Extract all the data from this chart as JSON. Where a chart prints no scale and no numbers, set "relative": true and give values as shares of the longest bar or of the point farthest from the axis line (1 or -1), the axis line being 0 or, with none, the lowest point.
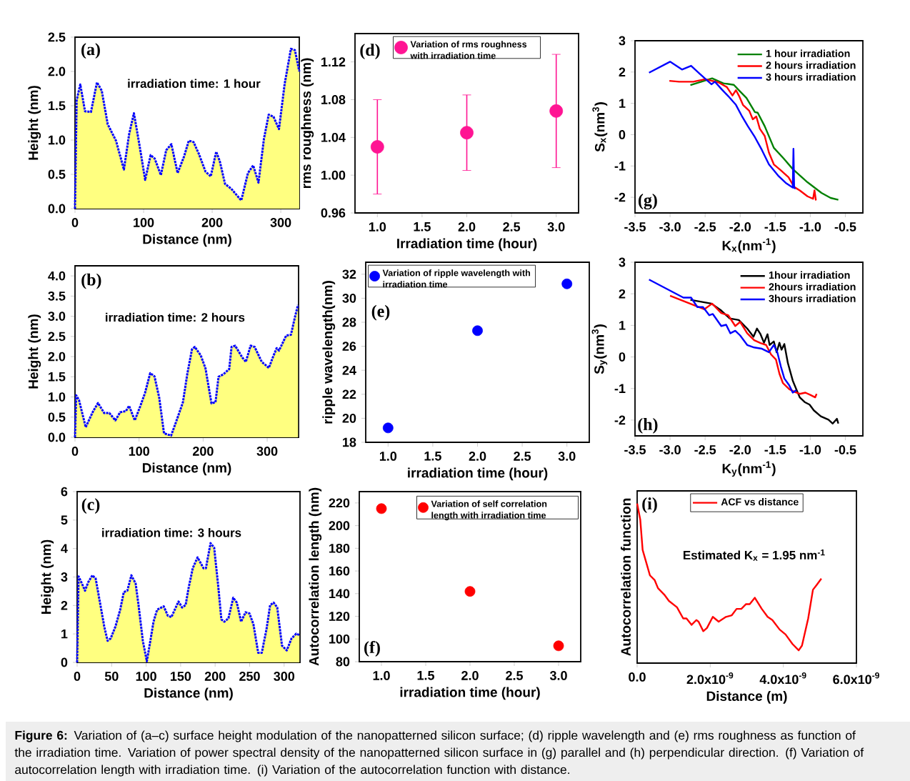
{
  "chart_data": [
    {
      "type": "area",
      "xlabel": "Distance (nm)",
      "ylabel": "Height (nm)",
      "annotations": [
        "(a)",
        "irradiation time: 1 hour"
      ],
      "line_style": "dotted",
      "x": [
        0,
        2.4,
        7.7,
        14.6,
        23.3,
        32.0,
        39.0,
        47.7,
        59.8,
        71.3,
        79.0,
        85.9,
        93.6,
        102.3,
        110.3,
        116.2,
        125.2,
        132.9,
        140.5,
        149.6,
        159.0,
        165.9,
        172.9,
        180.5,
        190.3,
        197.9,
        205.9,
        211.1,
        218.8,
        227.8,
        242.4,
        252.2,
        259.8,
        267.5,
        275.5,
        282.4,
        289.4,
        297.4,
        305.7,
        314.8,
        320.7,
        327
      ],
      "series": [
        {
          "type": "area",
          "color": "#ffff80",
          "values": [
            0,
            1.58,
            1.81,
            1.42,
            1.41,
            1.84,
            1.72,
            1.23,
            0.99,
            0.57,
            1.09,
            1.39,
            0.95,
            0.42,
            0.78,
            0.73,
            0.49,
            0.85,
            0.94,
            0.52,
            0.76,
            0.99,
            0.97,
            0.8,
            0.54,
            0.47,
            0.83,
            0.69,
            0.36,
            0.29,
            0.12,
            0.52,
            0.63,
            0.38,
            1.02,
            1.37,
            1.34,
            1.16,
            1.82,
            2.33,
            2.31,
            2.0
          ]
        }
      ],
      "color": "#0000ff",
      "xlim": [
        0,
        327
      ],
      "xticks": [
        0,
        100,
        200,
        300
      ],
      "ylim": [
        0,
        2.5
      ],
      "yticks": [
        {
          "value": 0,
          "label": "0.0"
        },
        0.5,
        {
          "value": 1,
          "label": "1.0"
        },
        1.5,
        {
          "value": 2,
          "label": "2.0"
        },
        2.5
      ]
    },
    {
      "type": "scatter",
      "xlabel": "Irradiation time (hour)",
      "ylabel": "rms roughness (nm)",
      "annotations": [
        "(d)"
      ],
      "legend": "top",
      "x": [
        1,
        2,
        3
      ],
      "series": [
        {
          "name": "Variation of rms roughness with irradiation time",
          "color": "#ff1493",
          "values": [
            1.03,
            1.045,
            1.068
          ],
          "errors": [
            0.05,
            0.04,
            0.06
          ]
        }
      ],
      "xlim": [
        0.75,
        3.25
      ],
      "xticks": [
        {
          "value": 1,
          "label": "1.0"
        },
        1.5,
        {
          "value": 2,
          "label": "2.0"
        },
        2.5,
        {
          "value": 3,
          "label": "3.0"
        }
      ],
      "ylim": [
        0.96,
        1.15
      ],
      "yticks": [
        0.96,
        {
          "value": 1,
          "label": "1.00"
        },
        1.04,
        1.08,
        1.12
      ]
    },
    {
      "type": "line",
      "xlabel": "K$_{x}$(nm$^{-1}$)",
      "ylabel": "S$_{x}$(nm$^{3}$)",
      "annotations": [
        "(g)"
      ],
      "legend": "top right",
      "series": [
        {
          "name": "1 hour irradiation",
          "color": "#008000",
          "x": [
            -2.71,
            -2.4,
            -2.24,
            -2.09,
            -2.01,
            -1.91,
            -1.79,
            -1.75,
            -1.65,
            -1.52,
            -1.38,
            -1.25,
            -1.04,
            -0.84,
            -0.71,
            -0.6
          ],
          "values": [
            1.58,
            1.8,
            1.64,
            1.59,
            1.4,
            1.17,
            0.72,
            0.7,
            0.27,
            -0.42,
            -0.76,
            -1.1,
            -1.52,
            -1.86,
            -2.02,
            -2.08
          ]
        },
        {
          "name": "2 hours irradiation",
          "color": "#ff0000",
          "x": [
            -3.01,
            -2.87,
            -2.67,
            -2.5,
            -2.31,
            -2.19,
            -2.11,
            -2.06,
            -2.01,
            -1.96,
            -1.87,
            -1.82,
            -1.77,
            -1.72,
            -1.65,
            -1.59,
            -1.52,
            -1.42,
            -1.31,
            -1.23,
            -1.15,
            -1.04,
            -0.96,
            -0.94,
            -0.92
          ],
          "values": [
            1.72,
            1.69,
            1.69,
            1.77,
            1.67,
            1.52,
            1.25,
            1.42,
            1.21,
            0.95,
            0.76,
            0.49,
            0.58,
            0.19,
            -0.04,
            -0.57,
            -0.95,
            -1.14,
            -1.36,
            -1.67,
            -1.78,
            -1.97,
            -2.05,
            -1.78,
            -2.1
          ]
        },
        {
          "name": "3 hours irradiation",
          "color": "#0000ff",
          "x": [
            -3.3,
            -3.0,
            -2.83,
            -2.7,
            -2.57,
            -2.41,
            -2.36,
            -2.26,
            -2.17,
            -2.06,
            -1.97,
            -1.89,
            -1.79,
            -1.69,
            -1.59,
            -1.45,
            -1.35,
            -1.25,
            -1.24,
            -1.23,
            -1.21
          ],
          "values": [
            1.98,
            2.33,
            2.08,
            2.2,
            1.93,
            1.61,
            1.69,
            1.44,
            1.23,
            0.95,
            0.57,
            0.27,
            -0.08,
            -0.49,
            -0.95,
            -1.33,
            -1.54,
            -1.69,
            -0.45,
            -1.7,
            -1.72
          ]
        }
      ],
      "xlim": [
        -3.5,
        -0.25
      ],
      "xticks": [
        -3.5,
        {
          "value": -3,
          "label": "-3.0"
        },
        -2.5,
        {
          "value": -2,
          "label": "-2.0"
        },
        -1.5,
        {
          "value": -1,
          "label": "-1.0"
        },
        -0.5
      ],
      "ylim": [
        -2.5,
        3
      ],
      "yticks": [
        -2,
        -1,
        0,
        1,
        2,
        3
      ]
    },
    {
      "type": "area",
      "xlabel": "Distance (nm)",
      "ylabel": "Height (nm)",
      "annotations": [
        "(b)",
        "irradiation time: 2 hours"
      ],
      "line_style": "dotted",
      "x": [
        0,
        1.9,
        6.3,
        16.7,
        27.8,
        35.9,
        45.6,
        53.7,
        63.0,
        70.4,
        79.6,
        84.4,
        93.3,
        101.9,
        109.3,
        117.4,
        124.1,
        131.5,
        138.9,
        150.0,
        159.3,
        168.5,
        175.2,
        182.6,
        187.0,
        196.3,
        203.7,
        213.0,
        219.3,
        224.1,
        231.5,
        240.7,
        244.4,
        250.0,
        261.1,
        266.7,
        274.1,
        280.4,
        291.5,
        302.6,
        309.3,
        314.8,
        318.5,
        329.6,
        337.0,
        344.4,
        348.1
      ],
      "series": [
        {
          "type": "area",
          "color": "#ffff80",
          "values": [
            0,
            1.04,
            0.92,
            0.25,
            0.63,
            0.85,
            0.6,
            0.6,
            0.42,
            0.62,
            0.65,
            0.78,
            0.42,
            0.77,
            1.1,
            1.59,
            1.51,
            0.98,
            0.1,
            0.04,
            0.45,
            0.87,
            1.56,
            2.18,
            2.24,
            2.03,
            1.71,
            0.84,
            0.87,
            1.5,
            1.56,
            1.69,
            2.24,
            2.27,
            1.98,
            1.87,
            2.27,
            2.24,
            1.87,
            1.72,
            2.0,
            2.21,
            2.15,
            2.52,
            2.54,
            3.05,
            3.28
          ]
        }
      ],
      "color": "#0000ff",
      "xlim": [
        0,
        349
      ],
      "xticks": [
        0,
        100,
        200,
        300
      ],
      "ylim": [
        0,
        4.25
      ],
      "yticks": [
        {
          "value": 0,
          "label": "0.0"
        },
        0.5,
        {
          "value": 1,
          "label": "1.0"
        },
        1.5,
        {
          "value": 2,
          "label": "2.0"
        },
        2.5,
        {
          "value": 3,
          "label": "3.0"
        },
        3.5,
        {
          "value": 4,
          "label": "4.0"
        }
      ]
    },
    {
      "type": "scatter",
      "xlabel": "irradiation time (hour)",
      "ylabel": "ripple wavelength(nm)",
      "annotations": [
        "(e)"
      ],
      "legend": "top left",
      "x": [
        1,
        2,
        3
      ],
      "series": [
        {
          "name": "Variation of ripple wavelength with irradiation time",
          "color": "#0000ff",
          "values": [
            19.2,
            27.3,
            31.2
          ]
        }
      ],
      "xlim": [
        0.75,
        3.25
      ],
      "xticks": [
        {
          "value": 1,
          "label": "1.0"
        },
        1.5,
        {
          "value": 2,
          "label": "2.0"
        },
        2.5,
        {
          "value": 3,
          "label": "3.0"
        }
      ],
      "ylim": [
        18,
        33
      ],
      "yticks": [
        18,
        20,
        22,
        24,
        26,
        28,
        30,
        32
      ]
    },
    {
      "type": "line",
      "xlabel": "K$_{y}$(nm$^{-1}$)",
      "ylabel": "S$_{y}$(nm$^{3}$)",
      "annotations": [
        "(h)"
      ],
      "legend": "top right",
      "series": [
        {
          "name": "1hour irradiation",
          "color": "#000000",
          "x": [
            -2.71,
            -2.51,
            -2.41,
            -2.27,
            -2.15,
            -2.02,
            -1.9,
            -1.81,
            -1.76,
            -1.71,
            -1.66,
            -1.61,
            -1.58,
            -1.52,
            -1.48,
            -1.44,
            -1.41,
            -1.37,
            -1.32,
            -1.25,
            -1.2,
            -1.15,
            -1.08,
            -1.01,
            -0.95,
            -0.85,
            -0.74,
            -0.68,
            -0.62,
            -0.6
          ],
          "values": [
            1.81,
            1.73,
            1.69,
            1.47,
            1.22,
            1.17,
            0.9,
            0.64,
            0.9,
            0.72,
            0.45,
            0.72,
            0.38,
            0.49,
            0.15,
            0.45,
            0.23,
            0.41,
            -0.19,
            -0.75,
            -1.02,
            -1.28,
            -1.43,
            -1.51,
            -1.69,
            -1.88,
            -1.99,
            -2.11,
            -1.96,
            -2.11
          ]
        },
        {
          "name": "2hours irradiation",
          "color": "#ff0000",
          "x": [
            -3.0,
            -2.51,
            -2.4,
            -2.27,
            -2.17,
            -2.07,
            -2.0,
            -1.9,
            -1.8,
            -1.71,
            -1.63,
            -1.56,
            -1.49,
            -1.44,
            -1.39,
            -1.3,
            -1.22,
            -1.15,
            -1.07,
            -1.0,
            -0.93,
            -0.91
          ],
          "values": [
            1.94,
            1.51,
            1.69,
            1.39,
            1.32,
            0.98,
            1.11,
            0.75,
            0.53,
            0.44,
            0.38,
            0.08,
            -0.08,
            -0.53,
            -0.83,
            -1.02,
            -1.11,
            -1.17,
            -1.13,
            -1.2,
            -1.28,
            -1.17
          ]
        },
        {
          "name": "3hours irradiation",
          "color": "#0000ff",
          "x": [
            -3.3,
            -2.81,
            -2.7,
            -2.61,
            -2.53,
            -2.44,
            -2.39,
            -2.27,
            -2.2,
            -2.14,
            -2.07,
            -2.0,
            -1.9,
            -1.8,
            -1.69,
            -1.59,
            -1.52,
            -1.47,
            -1.42,
            -1.37,
            -1.3,
            -1.25,
            -1.2
          ],
          "values": [
            2.45,
            1.88,
            1.88,
            1.58,
            1.58,
            1.32,
            1.36,
            0.98,
            1.02,
            0.75,
            0.83,
            0.68,
            0.38,
            0.3,
            0.26,
            0.15,
            0.38,
            0.15,
            -0.3,
            -0.68,
            -0.9,
            -1.13,
            -1.05
          ]
        }
      ],
      "xlim": [
        -3.5,
        -0.25
      ],
      "xticks": [
        -3.5,
        {
          "value": -3,
          "label": "-3.0"
        },
        -2.5,
        {
          "value": -2,
          "label": "-2.0"
        },
        -1.5,
        {
          "value": -1,
          "label": "-1.0"
        },
        -0.5
      ],
      "ylim": [
        -2.5,
        3
      ],
      "yticks": [
        -2,
        -1,
        0,
        1,
        2,
        3
      ]
    },
    {
      "type": "area",
      "xlabel": "Distance (nm)",
      "ylabel": "Height (nm)",
      "annotations": [
        "(c)",
        "irradiation time: 3 hours"
      ],
      "line_style": "dotted",
      "x": [
        0,
        2.1,
        6.2,
        11.4,
        15.9,
        22.1,
        26.9,
        33.1,
        39.3,
        44.1,
        48.6,
        55.5,
        62.4,
        67.6,
        72.8,
        78.6,
        84.8,
        89.0,
        95.2,
        101.0,
        105.5,
        110.7,
        115.9,
        125.5,
        131.4,
        136.6,
        146.9,
        152.1,
        157.2,
        161.4,
        167.6,
        174.5,
        183.1,
        186.6,
        193.4,
        198.6,
        204.5,
        209.0,
        213.4,
        219.3,
        226.2,
        231.4,
        237.6,
        244.1,
        249.7,
        255.5,
        262.4,
        267.6,
        274.5,
        279.7,
        284.8,
        290.0,
        296.9,
        303.8,
        310.7,
        317.6,
        322.1
      ],
      "series": [
        {
          "type": "area",
          "color": "#ffff80",
          "values": [
            0,
            3.02,
            2.81,
            2.52,
            2.81,
            3.06,
            2.94,
            2.1,
            1.26,
            0.76,
            0.84,
            1.26,
            1.85,
            2.47,
            2.52,
            3.06,
            2.77,
            2.01,
            0.76,
            0.04,
            0.67,
            1.43,
            1.85,
            1.97,
            1.64,
            1.59,
            2.14,
            1.93,
            2.01,
            2.6,
            3.31,
            3.69,
            3.31,
            3.31,
            4.19,
            4.03,
            2.68,
            1.51,
            1.43,
            1.55,
            2.27,
            2.1,
            1.43,
            1.76,
            1.72,
            1.34,
            0.34,
            0.34,
            1.17,
            2.01,
            2.1,
            1.93,
            0.59,
            0.42,
            0.84,
            1.01,
            0.96
          ]
        }
      ],
      "color": "#0000ff",
      "xlim": [
        0,
        323
      ],
      "xticks": [
        0,
        50,
        100,
        150,
        200,
        250,
        300
      ],
      "ylim": [
        0,
        6
      ],
      "yticks": [
        0,
        1,
        2,
        3,
        4,
        5,
        6
      ]
    },
    {
      "type": "scatter",
      "xlabel": "irradiation time (hour)",
      "ylabel": "Autocorrelation length (nm)",
      "annotations": [
        "(f)"
      ],
      "legend": "top right",
      "x": [
        1,
        2,
        3
      ],
      "series": [
        {
          "name": "Variation of self correlation length with irradiation time",
          "color": "#ff0000",
          "values": [
            215,
            142,
            94
          ]
        }
      ],
      "xlim": [
        0.75,
        3.25
      ],
      "xticks": [
        {
          "value": 1,
          "label": "1.0"
        },
        1.5,
        {
          "value": 2,
          "label": "2.0"
        },
        2.5,
        {
          "value": 3,
          "label": "3.0"
        }
      ],
      "ylim": [
        80,
        230
      ],
      "yticks": [
        80,
        100,
        120,
        140,
        160,
        180,
        200,
        220
      ]
    },
    {
      "type": "line",
      "xlabel": "Distance (m)",
      "ylabel": "Autocorrelation function",
      "annotations": [
        "(i)",
        "Estimated K$_{x}$ = 1.95 nm$^{-1}$"
      ],
      "legend": "top",
      "relative": true,
      "series": [
        {
          "name": "ACF vs distance",
          "color": "#ff0000",
          "x": [
            0,
            8.5e-11,
            1.5e-10,
            2.5e-10,
            3.5e-10,
            4.8e-10,
            5.7e-10,
            7.4e-10,
            8.7e-10,
            1.09e-09,
            1.26e-09,
            1.35e-09,
            1.49e-09,
            1.62e-09,
            1.68e-09,
            1.81e-09,
            1.91e-09,
            2.07e-09,
            2.23e-09,
            2.43e-09,
            2.59e-09,
            2.72e-09,
            2.85e-09,
            2.98e-09,
            3.08e-09,
            3.22e-09,
            3.41e-09,
            3.57e-09,
            3.7e-09,
            3.9e-09,
            4.06e-09,
            4.25e-09,
            4.42e-09,
            4.51e-09,
            4.68e-09,
            4.81e-09,
            4.91e-09,
            5.04e-09
          ],
          "values": [
            1.0,
            0.9,
            0.71,
            0.63,
            0.55,
            0.52,
            0.47,
            0.43,
            0.39,
            0.35,
            0.28,
            0.28,
            0.24,
            0.27,
            0.26,
            0.2,
            0.22,
            0.29,
            0.26,
            0.29,
            0.3,
            0.34,
            0.34,
            0.37,
            0.37,
            0.41,
            0.34,
            0.29,
            0.27,
            0.21,
            0.18,
            0.12,
            0.08,
            0.11,
            0.28,
            0.46,
            0.49,
            0.53
          ]
        }
      ],
      "xlim": [
        0,
        6e-09
      ],
      "xticks": [
        {
          "value": 0,
          "label": "0.0"
        },
        {
          "value": 2e-09,
          "label": "2.0x10$^{-9}$"
        },
        {
          "value": 4e-09,
          "label": "4.0x10$^{-9}$"
        },
        {
          "value": 6e-09,
          "label": "6.0x10$^{-9}$"
        }
      ]
    },
    {
      "type": "other",
      "annotations": [
        "**Figure 6:** Variation of (a–c) surface height modulation of the nanopatterned silicon surface; (d) ripple wavelength and (e) rms roughness as function of the irradiation time. Variation of power spectral density of the nanopatterned silicon surface in (g) parallel and (h) perpendicular direction. (f) Variation of autocorrelation length with irradiation time. (i) Variation of the autocorrelation function with distance."
      ]
    }
  ]
}
